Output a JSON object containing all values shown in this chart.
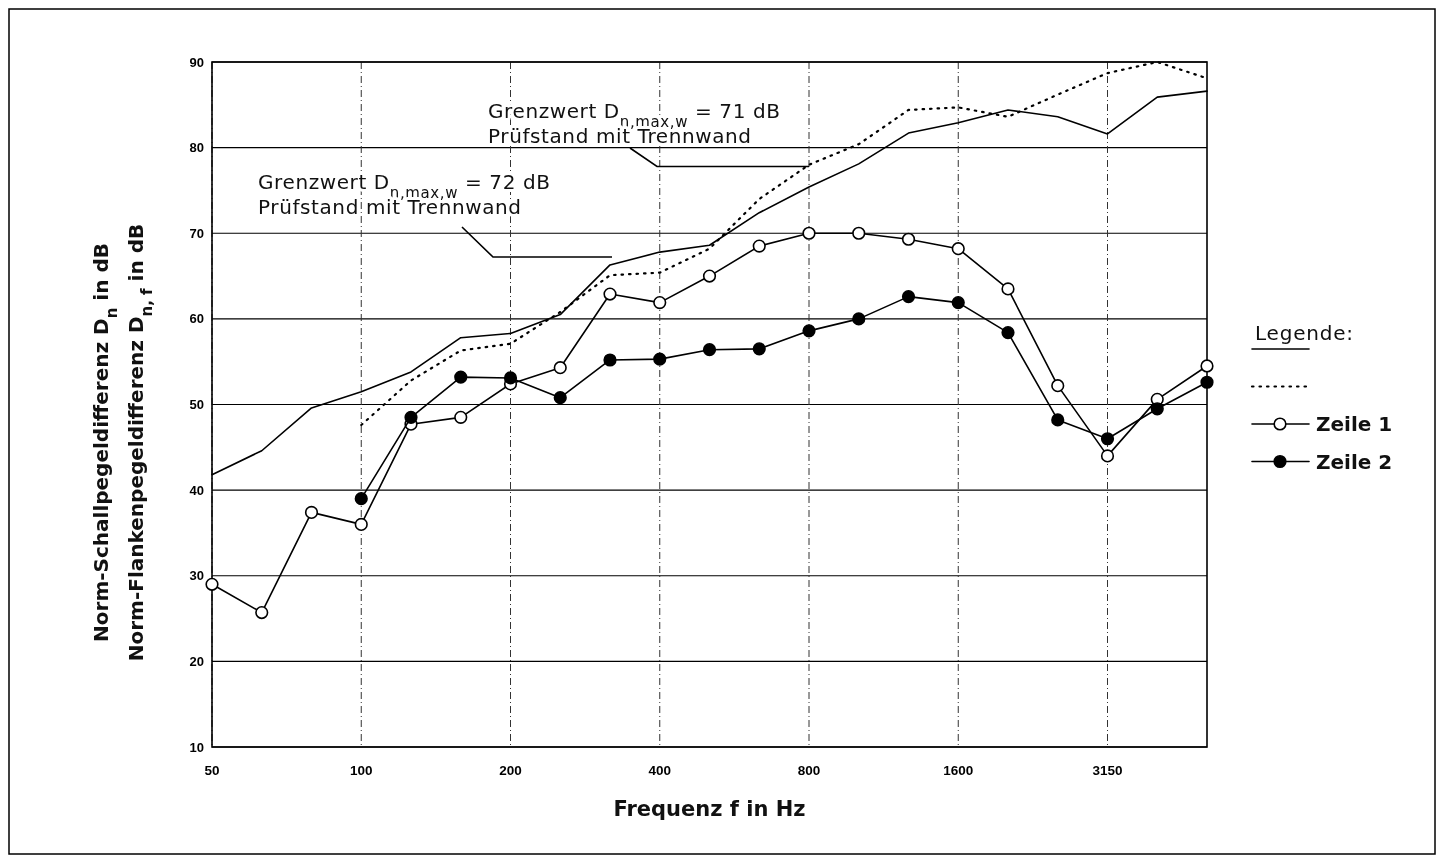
{
  "chart_data": {
    "type": "line",
    "xlabel": "Frequenz f in Hz",
    "ylabel": "Norm-Schallpegeldifferenz D$_{n}$ in dB\nNorm-Flankenpegeldifferenz D$_{n, f}$ in dB",
    "legend_title": "Legende:",
    "categories": [
      "50",
      null,
      null,
      "100",
      null,
      null,
      "200",
      null,
      null,
      "400",
      null,
      null,
      "800",
      null,
      null,
      "1600",
      null,
      null,
      "3150",
      null,
      null
    ],
    "ylim": [
      10,
      90
    ],
    "yticks": [
      10,
      20,
      30,
      40,
      50,
      60,
      70,
      80,
      90
    ],
    "grid": true,
    "legend": "right",
    "series": [
      {
        "color": "#000000",
        "line_style": "solid",
        "marker": "none",
        "values": [
          41.8,
          44.6,
          49.6,
          51.5,
          53.8,
          57.8,
          58.3,
          60.5,
          66.3,
          67.8,
          68.6,
          72.4,
          75.4,
          78.1,
          81.7,
          82.9,
          84.4,
          83.6,
          81.6,
          85.9,
          86.6
        ]
      },
      {
        "color": "#000000",
        "line_style": "dotted",
        "marker": "none",
        "values": [
          null,
          null,
          null,
          47.6,
          52.8,
          56.3,
          57.1,
          60.8,
          65.1,
          65.4,
          68.2,
          74.0,
          78.0,
          80.4,
          84.4,
          84.7,
          83.6,
          86.2,
          88.7,
          90.0,
          88.1
        ]
      },
      {
        "name": "Zeile 1",
        "color": "#000000",
        "line_style": "solid",
        "marker": "circle",
        "values": [
          29.0,
          25.7,
          37.4,
          36.0,
          47.7,
          48.5,
          52.4,
          54.3,
          62.9,
          61.9,
          65.0,
          68.5,
          70.0,
          70.0,
          69.3,
          68.2,
          63.5,
          52.2,
          44.0,
          50.6,
          54.5
        ]
      },
      {
        "name": "Zeile 2",
        "color": "#000000",
        "line_style": "solid",
        "marker": "circle",
        "values": [
          null,
          null,
          null,
          39.0,
          48.5,
          53.2,
          53.1,
          50.8,
          55.2,
          55.3,
          56.4,
          56.5,
          58.6,
          60.0,
          62.6,
          61.9,
          58.4,
          48.2,
          46.0,
          49.5,
          52.6
        ]
      }
    ],
    "annotations": [
      {
        "text": "Grenzwert D$_{n,max,w}$ = 71 dB\nPrüfstand mit Trennwand",
        "x": "800",
        "y": 77.8
      },
      "Grenzwert D$_{n,max,w}$ = 72 dB\nPrüfstand mit Trennwand"
    ]
  }
}
